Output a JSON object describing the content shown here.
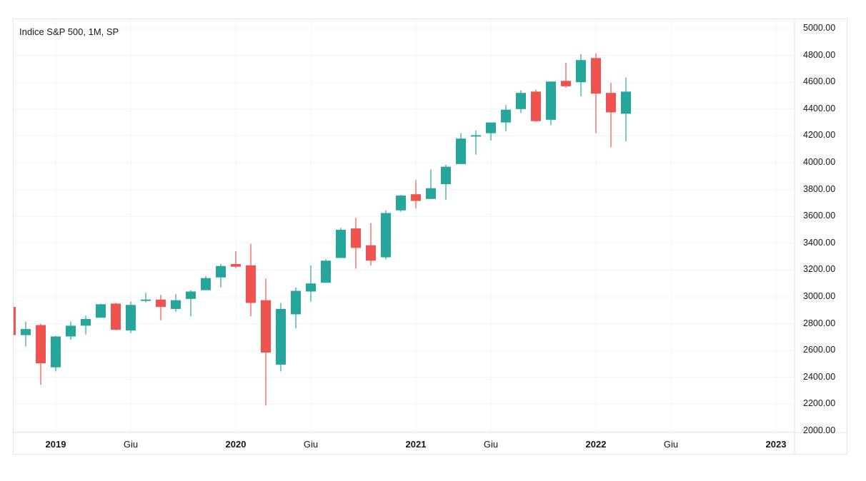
{
  "chart_data": {
    "type": "candlestick",
    "title": "Indice S&P 500, 1M, SP",
    "ylim": [
      2000,
      5000
    ],
    "yticks": [
      "5000.00",
      "4800.00",
      "4600.00",
      "4400.00",
      "4200.00",
      "4000.00",
      "3800.00",
      "3600.00",
      "3400.00",
      "3200.00",
      "3000.00",
      "2800.00",
      "2600.00",
      "2400.00",
      "2200.00",
      "2000.00"
    ],
    "xticks": [
      {
        "label": "2019",
        "month_index": 0,
        "major": true
      },
      {
        "label": "Giu",
        "month_index": 5,
        "major": false
      },
      {
        "label": "2020",
        "month_index": 12,
        "major": true
      },
      {
        "label": "Giu",
        "month_index": 17,
        "major": false
      },
      {
        "label": "2021",
        "month_index": 24,
        "major": true
      },
      {
        "label": "Giu",
        "month_index": 29,
        "major": false
      },
      {
        "label": "2022",
        "month_index": 36,
        "major": true
      },
      {
        "label": "Giu",
        "month_index": 41,
        "major": false
      },
      {
        "label": "2023",
        "month_index": 48,
        "major": true
      }
    ],
    "colors": {
      "up": "#26a69a",
      "down": "#ef5350",
      "grid": "#f0f3fa",
      "axis": "#e0e3eb"
    },
    "candles": [
      {
        "month_index": -3,
        "open": 2925,
        "high": 2940,
        "low": 2710,
        "close": 2715
      },
      {
        "month_index": -2,
        "open": 2715,
        "high": 2815,
        "low": 2630,
        "close": 2760
      },
      {
        "month_index": -1,
        "open": 2790,
        "high": 2800,
        "low": 2345,
        "close": 2505
      },
      {
        "month_index": 0,
        "open": 2475,
        "high": 2710,
        "low": 2445,
        "close": 2705
      },
      {
        "month_index": 1,
        "open": 2705,
        "high": 2815,
        "low": 2680,
        "close": 2785
      },
      {
        "month_index": 2,
        "open": 2785,
        "high": 2860,
        "low": 2720,
        "close": 2835
      },
      {
        "month_index": 3,
        "open": 2845,
        "high": 2950,
        "low": 2845,
        "close": 2945
      },
      {
        "month_index": 4,
        "open": 2950,
        "high": 2955,
        "low": 2750,
        "close": 2755
      },
      {
        "month_index": 5,
        "open": 2750,
        "high": 2965,
        "low": 2730,
        "close": 2940
      },
      {
        "month_index": 6,
        "open": 2970,
        "high": 3030,
        "low": 2960,
        "close": 2980
      },
      {
        "month_index": 7,
        "open": 2980,
        "high": 3015,
        "low": 2825,
        "close": 2925
      },
      {
        "month_index": 8,
        "open": 2910,
        "high": 3020,
        "low": 2890,
        "close": 2975
      },
      {
        "month_index": 9,
        "open": 2985,
        "high": 3050,
        "low": 2855,
        "close": 3040
      },
      {
        "month_index": 10,
        "open": 3050,
        "high": 3155,
        "low": 3050,
        "close": 3140
      },
      {
        "month_index": 11,
        "open": 3145,
        "high": 3245,
        "low": 3070,
        "close": 3230
      },
      {
        "month_index": 12,
        "open": 3245,
        "high": 3340,
        "low": 3215,
        "close": 3225
      },
      {
        "month_index": 13,
        "open": 3235,
        "high": 3395,
        "low": 2855,
        "close": 2955
      },
      {
        "month_index": 14,
        "open": 2975,
        "high": 3135,
        "low": 2190,
        "close": 2585
      },
      {
        "month_index": 15,
        "open": 2495,
        "high": 2955,
        "low": 2445,
        "close": 2910
      },
      {
        "month_index": 16,
        "open": 2870,
        "high": 3070,
        "low": 2765,
        "close": 3045
      },
      {
        "month_index": 17,
        "open": 3040,
        "high": 3235,
        "low": 2965,
        "close": 3100
      },
      {
        "month_index": 18,
        "open": 3105,
        "high": 3280,
        "low": 3105,
        "close": 3270
      },
      {
        "month_index": 19,
        "open": 3290,
        "high": 3515,
        "low": 3290,
        "close": 3500
      },
      {
        "month_index": 20,
        "open": 3510,
        "high": 3590,
        "low": 3210,
        "close": 3365
      },
      {
        "month_index": 21,
        "open": 3385,
        "high": 3550,
        "low": 3235,
        "close": 3270
      },
      {
        "month_index": 22,
        "open": 3295,
        "high": 3645,
        "low": 3280,
        "close": 3625
      },
      {
        "month_index": 23,
        "open": 3645,
        "high": 3760,
        "low": 3635,
        "close": 3755
      },
      {
        "month_index": 24,
        "open": 3765,
        "high": 3870,
        "low": 3660,
        "close": 3715
      },
      {
        "month_index": 25,
        "open": 3730,
        "high": 3950,
        "low": 3730,
        "close": 3810
      },
      {
        "month_index": 26,
        "open": 3840,
        "high": 3985,
        "low": 3725,
        "close": 3970
      },
      {
        "month_index": 27,
        "open": 3990,
        "high": 4220,
        "low": 3990,
        "close": 4180
      },
      {
        "month_index": 28,
        "open": 4195,
        "high": 4240,
        "low": 4060,
        "close": 4205
      },
      {
        "month_index": 29,
        "open": 4220,
        "high": 4300,
        "low": 4165,
        "close": 4300
      },
      {
        "month_index": 30,
        "open": 4300,
        "high": 4430,
        "low": 4235,
        "close": 4395
      },
      {
        "month_index": 31,
        "open": 4400,
        "high": 4540,
        "low": 4370,
        "close": 4520
      },
      {
        "month_index": 32,
        "open": 4530,
        "high": 4545,
        "low": 4305,
        "close": 4310
      },
      {
        "month_index": 33,
        "open": 4320,
        "high": 4605,
        "low": 4280,
        "close": 4605
      },
      {
        "month_index": 34,
        "open": 4610,
        "high": 4745,
        "low": 4560,
        "close": 4570
      },
      {
        "month_index": 35,
        "open": 4600,
        "high": 4810,
        "low": 4495,
        "close": 4765
      },
      {
        "month_index": 36,
        "open": 4780,
        "high": 4815,
        "low": 4220,
        "close": 4515
      },
      {
        "month_index": 37,
        "open": 4520,
        "high": 4595,
        "low": 4115,
        "close": 4375
      },
      {
        "month_index": 38,
        "open": 4365,
        "high": 4635,
        "low": 4160,
        "close": 4530
      }
    ]
  }
}
